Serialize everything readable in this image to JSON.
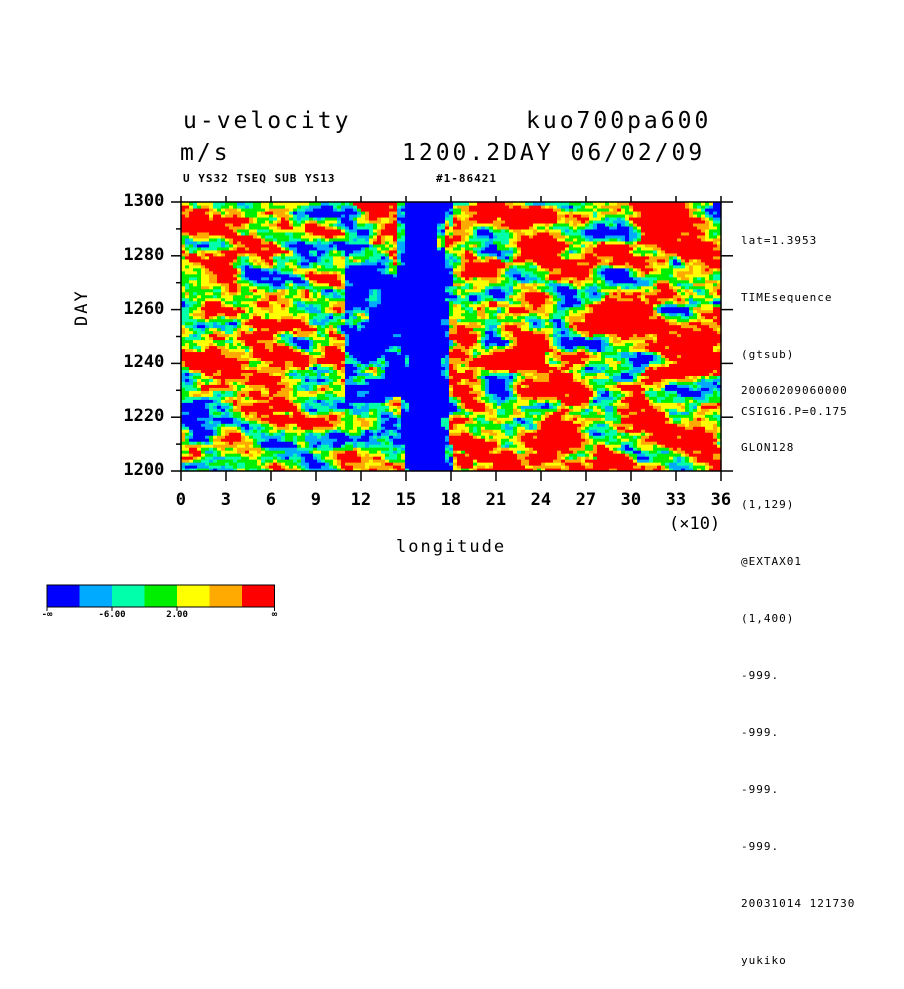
{
  "header": {
    "variable": "u-velocity",
    "run": "kuo700pa600",
    "units": "m/s",
    "time": "1200.2DAY 06/02/09",
    "subtitle_left": "U YS32 TSEQ SUB YS13",
    "subtitle_right": "#1-86421"
  },
  "side_info": {
    "top": [
      "lat=1.3953",
      "TIMEsequence",
      "(gtsub)",
      "CSIG16.P=0.175"
    ],
    "bottom": [
      "20060209060000",
      "GLON128",
      "(1,129)",
      "@EXTAX01",
      "(1,400)",
      "-999.",
      "-999.",
      "-999.",
      "-999.",
      "20031014 121730",
      "yukiko"
    ]
  },
  "chart_data": {
    "type": "heatmap",
    "title": "u-velocity",
    "xlabel": "longitude",
    "x_multiplier_label": "(×10)",
    "ylabel": "DAY",
    "xlim": [
      0,
      36
    ],
    "ylim": [
      1200,
      1300
    ],
    "x_ticks": [
      "0",
      "3",
      "6",
      "9",
      "12",
      "15",
      "18",
      "21",
      "24",
      "27",
      "30",
      "33",
      "36"
    ],
    "y_ticks": [
      "1200",
      "1220",
      "1240",
      "1260",
      "1280",
      "1300"
    ],
    "grid": false,
    "colorbar": {
      "colors": [
        "#0000ff",
        "#00aaff",
        "#00ffaa",
        "#00ee00",
        "#ffff00",
        "#ffaa00",
        "#ff0000"
      ],
      "labels": [
        "-∞",
        "-6.00",
        "2.00",
        "∞"
      ]
    },
    "features": [
      {
        "name": "strong easterly band",
        "lon_range": [
          150,
          175
        ],
        "day_range": [
          1200,
          1300
        ],
        "level": "< -6"
      },
      {
        "name": "easterly lobe",
        "lon_range": [
          110,
          150
        ],
        "day_range": [
          1225,
          1285
        ],
        "level": "< -6"
      },
      {
        "name": "westerly bursts",
        "lon_range": [
          180,
          360
        ],
        "day_range": [
          1210,
          1300
        ],
        "level": "> 2"
      }
    ]
  }
}
